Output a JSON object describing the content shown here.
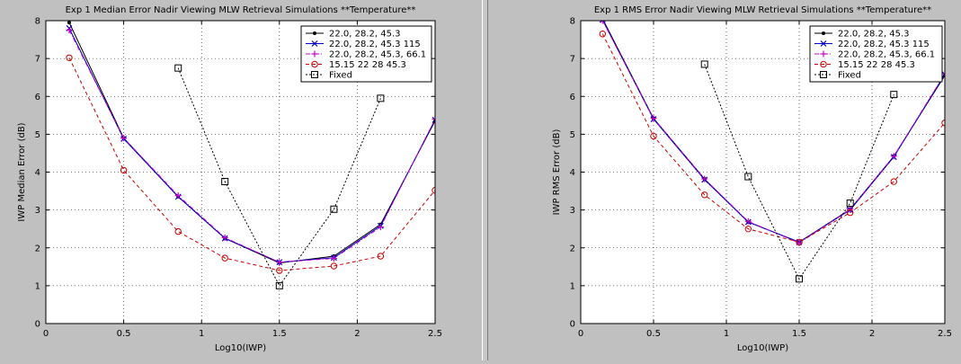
{
  "chart_data": [
    {
      "type": "line",
      "title": "Exp 1 Median Error Nadir Viewing MLW Retrieval Simulations **Temperature**",
      "xlabel": "Log10(IWP)",
      "ylabel": "IWP Median Error (dB)",
      "xlim": [
        0,
        2.5
      ],
      "ylim": [
        0,
        8
      ],
      "xticks": [
        "0",
        "0.5",
        "1",
        "1.5",
        "2",
        "2.5"
      ],
      "yticks": [
        "0",
        "1",
        "2",
        "3",
        "4",
        "5",
        "6",
        "7",
        "8"
      ],
      "grid": true,
      "legend_position": "top-right",
      "series": [
        {
          "name": "22.0, 28.2, 45.3",
          "color": "#000000",
          "marker": "dot",
          "dash": "solid",
          "x": [
            0.15,
            0.5,
            0.85,
            1.15,
            1.5,
            1.85,
            2.15,
            2.5
          ],
          "y": [
            7.95,
            4.9,
            3.35,
            2.25,
            1.6,
            1.78,
            2.62,
            5.35
          ]
        },
        {
          "name": "22.0, 28.2, 45.3 115",
          "color": "#0000cc",
          "marker": "x",
          "dash": "solid",
          "x": [
            0.15,
            0.5,
            0.85,
            1.15,
            1.5,
            1.85,
            2.15,
            2.5
          ],
          "y": [
            7.8,
            4.88,
            3.35,
            2.25,
            1.62,
            1.74,
            2.58,
            5.38
          ]
        },
        {
          "name": "22.0, 28.2, 45.3, 66.1",
          "color": "#cc00cc",
          "marker": "plus",
          "dash": "dashdot",
          "x": [
            0.15,
            0.5,
            0.85,
            1.15,
            1.5,
            1.85,
            2.15,
            2.5
          ],
          "y": [
            7.75,
            4.9,
            3.38,
            2.27,
            1.62,
            1.72,
            2.55,
            5.4
          ]
        },
        {
          "name": "15.15 22 28 45.3",
          "color": "#cc0000",
          "marker": "circle",
          "dash": "dashed",
          "x": [
            0.15,
            0.5,
            0.85,
            1.15,
            1.5,
            1.85,
            2.15,
            2.5
          ],
          "y": [
            7.02,
            4.05,
            2.43,
            1.73,
            1.4,
            1.52,
            1.78,
            3.52
          ]
        },
        {
          "name": "Fixed",
          "color": "#000000",
          "marker": "square",
          "dash": "dotted",
          "x": [
            0.85,
            1.15,
            1.5,
            1.85,
            2.15
          ],
          "y": [
            6.75,
            3.75,
            1.0,
            3.02,
            5.95
          ]
        }
      ]
    },
    {
      "type": "line",
      "title": "Exp 1 RMS Error Nadir Viewing MLW Retrieval Simulations **Temperature**",
      "xlabel": "Log10(IWP)",
      "ylabel": "IWP RMS Error (dB)",
      "xlim": [
        0,
        2.5
      ],
      "ylim": [
        0,
        8
      ],
      "xticks": [
        "0",
        "0.5",
        "1",
        "1.5",
        "2",
        "2.5"
      ],
      "yticks": [
        "0",
        "1",
        "2",
        "3",
        "4",
        "5",
        "6",
        "7",
        "8"
      ],
      "grid": true,
      "legend_position": "top-right",
      "series": [
        {
          "name": "22.0, 28.2, 45.3",
          "color": "#000000",
          "marker": "dot",
          "dash": "solid",
          "x": [
            0.15,
            0.5,
            0.85,
            1.15,
            1.5,
            1.85,
            2.15,
            2.5
          ],
          "y": [
            8.05,
            5.42,
            3.82,
            2.68,
            2.15,
            3.02,
            4.42,
            6.55
          ]
        },
        {
          "name": "22.0, 28.2, 45.3 115",
          "color": "#0000cc",
          "marker": "x",
          "dash": "solid",
          "x": [
            0.15,
            0.5,
            0.85,
            1.15,
            1.5,
            1.85,
            2.15,
            2.5
          ],
          "y": [
            8.02,
            5.4,
            3.8,
            2.68,
            2.15,
            3.0,
            4.4,
            6.58
          ]
        },
        {
          "name": "22.0, 28.2, 45.3, 66.1",
          "color": "#cc00cc",
          "marker": "plus",
          "dash": "dashdot",
          "x": [
            0.15,
            0.5,
            0.85,
            1.15,
            1.5,
            1.85,
            2.15,
            2.5
          ],
          "y": [
            8.0,
            5.42,
            3.82,
            2.7,
            2.13,
            3.02,
            4.42,
            6.6
          ]
        },
        {
          "name": "15.15 22 28 45.3",
          "color": "#cc0000",
          "marker": "circle",
          "dash": "dashed",
          "x": [
            0.15,
            0.5,
            0.85,
            1.15,
            1.5,
            1.85,
            2.15,
            2.5
          ],
          "y": [
            7.65,
            4.95,
            3.4,
            2.5,
            2.15,
            2.93,
            3.75,
            5.3
          ]
        },
        {
          "name": "Fixed",
          "color": "#000000",
          "marker": "square",
          "dash": "dotted",
          "x": [
            0.85,
            1.15,
            1.5,
            1.85,
            2.15
          ],
          "y": [
            6.85,
            3.88,
            1.18,
            3.18,
            6.05
          ]
        }
      ]
    }
  ]
}
